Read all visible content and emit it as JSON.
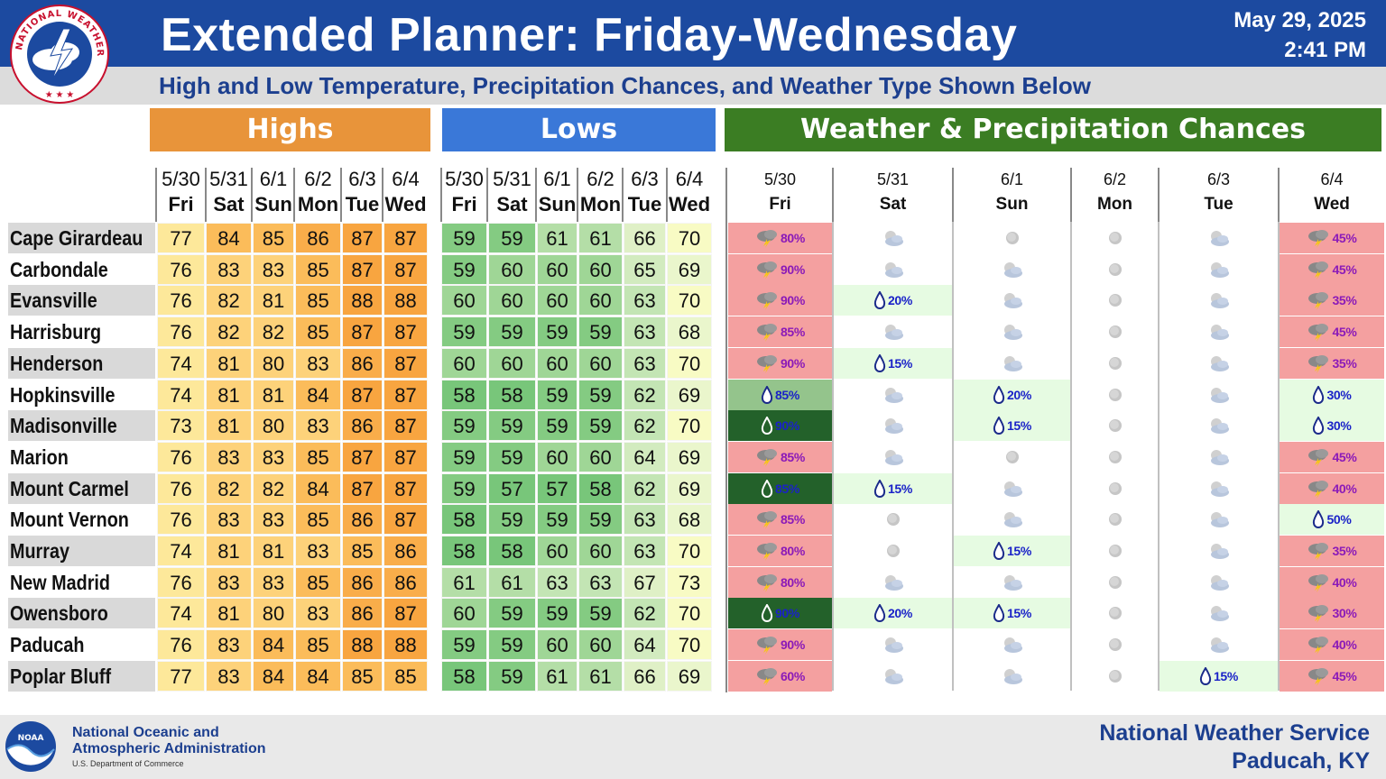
{
  "header": {
    "title": "Extended Planner: Friday-Wednesday",
    "date": "May 29, 2025",
    "time": "2:41 PM",
    "subtitle": "High and Low Temperature, Precipitation Chances, and Weather Type Shown Below",
    "logo_text": "NATIONAL WEATHER SERVICE"
  },
  "sections": {
    "highs": "Highs",
    "lows": "Lows",
    "weather": "Weather & Precipitation Chances"
  },
  "dates": [
    "5/30",
    "5/31",
    "6/1",
    "6/2",
    "6/3",
    "6/4"
  ],
  "days": [
    "Fri",
    "Sat",
    "Sun",
    "Mon",
    "Tue",
    "Wed"
  ],
  "colors": {
    "header_blue": "#1c4aa0",
    "highs_orange": "#e8943a",
    "lows_blue": "#3a78d8",
    "weather_green": "#3b7d23",
    "storm_pink": "#f4a0a0",
    "rain_lightgreen": "#e6fbe2",
    "rain_medgreen": "#94c48c",
    "rain_darkgreen": "#23612a"
  },
  "cities": [
    {
      "name": "Cape Girardeau",
      "highs": [
        77,
        84,
        85,
        86,
        87,
        87
      ],
      "lows": [
        59,
        59,
        61,
        61,
        66,
        70
      ],
      "wx": [
        {
          "icon": "storm-icon",
          "pct": "80%",
          "bg": "pink"
        },
        {
          "icon": "partly-cloudy-icon",
          "pct": "",
          "bg": "white"
        },
        {
          "icon": "sunny-icon",
          "pct": "",
          "bg": "white"
        },
        {
          "icon": "sunny-icon",
          "pct": "",
          "bg": "white"
        },
        {
          "icon": "partly-cloudy-icon",
          "pct": "",
          "bg": "white"
        },
        {
          "icon": "storm-icon",
          "pct": "45%",
          "bg": "pink"
        }
      ]
    },
    {
      "name": "Carbondale",
      "highs": [
        76,
        83,
        83,
        85,
        87,
        87
      ],
      "lows": [
        59,
        60,
        60,
        60,
        65,
        69
      ],
      "wx": [
        {
          "icon": "storm-icon",
          "pct": "90%",
          "bg": "pink"
        },
        {
          "icon": "partly-cloudy-icon",
          "pct": "",
          "bg": "white"
        },
        {
          "icon": "partly-cloudy-icon",
          "pct": "",
          "bg": "white"
        },
        {
          "icon": "sunny-icon",
          "pct": "",
          "bg": "white"
        },
        {
          "icon": "partly-cloudy-icon",
          "pct": "",
          "bg": "white"
        },
        {
          "icon": "storm-icon",
          "pct": "45%",
          "bg": "pink"
        }
      ]
    },
    {
      "name": "Evansville",
      "highs": [
        76,
        82,
        81,
        85,
        88,
        88
      ],
      "lows": [
        60,
        60,
        60,
        60,
        63,
        70
      ],
      "wx": [
        {
          "icon": "storm-icon",
          "pct": "90%",
          "bg": "pink"
        },
        {
          "icon": "rain-drop-icon",
          "pct": "20%",
          "bg": "lightgreen"
        },
        {
          "icon": "partly-cloudy-icon",
          "pct": "",
          "bg": "white"
        },
        {
          "icon": "sunny-icon",
          "pct": "",
          "bg": "white"
        },
        {
          "icon": "partly-cloudy-icon",
          "pct": "",
          "bg": "white"
        },
        {
          "icon": "storm-icon",
          "pct": "35%",
          "bg": "pink"
        }
      ]
    },
    {
      "name": "Harrisburg",
      "highs": [
        76,
        82,
        82,
        85,
        87,
        87
      ],
      "lows": [
        59,
        59,
        59,
        59,
        63,
        68
      ],
      "wx": [
        {
          "icon": "storm-icon",
          "pct": "85%",
          "bg": "pink"
        },
        {
          "icon": "partly-cloudy-icon",
          "pct": "",
          "bg": "white"
        },
        {
          "icon": "partly-cloudy-icon",
          "pct": "",
          "bg": "white"
        },
        {
          "icon": "sunny-icon",
          "pct": "",
          "bg": "white"
        },
        {
          "icon": "partly-cloudy-icon",
          "pct": "",
          "bg": "white"
        },
        {
          "icon": "storm-icon",
          "pct": "45%",
          "bg": "pink"
        }
      ]
    },
    {
      "name": "Henderson",
      "highs": [
        74,
        81,
        80,
        83,
        86,
        87
      ],
      "lows": [
        60,
        60,
        60,
        60,
        63,
        70
      ],
      "wx": [
        {
          "icon": "storm-icon",
          "pct": "90%",
          "bg": "pink"
        },
        {
          "icon": "rain-drop-icon",
          "pct": "15%",
          "bg": "lightgreen"
        },
        {
          "icon": "partly-cloudy-icon",
          "pct": "",
          "bg": "white"
        },
        {
          "icon": "sunny-icon",
          "pct": "",
          "bg": "white"
        },
        {
          "icon": "partly-cloudy-icon",
          "pct": "",
          "bg": "white"
        },
        {
          "icon": "storm-icon",
          "pct": "35%",
          "bg": "pink"
        }
      ]
    },
    {
      "name": "Hopkinsville",
      "highs": [
        74,
        81,
        81,
        84,
        87,
        87
      ],
      "lows": [
        58,
        58,
        59,
        59,
        62,
        69
      ],
      "wx": [
        {
          "icon": "rain-drop-icon",
          "pct": "85%",
          "bg": "medgreen"
        },
        {
          "icon": "partly-cloudy-icon",
          "pct": "",
          "bg": "white"
        },
        {
          "icon": "rain-drop-icon",
          "pct": "20%",
          "bg": "lightgreen"
        },
        {
          "icon": "sunny-icon",
          "pct": "",
          "bg": "white"
        },
        {
          "icon": "partly-cloudy-icon",
          "pct": "",
          "bg": "white"
        },
        {
          "icon": "rain-drop-icon",
          "pct": "30%",
          "bg": "lightgreen"
        }
      ]
    },
    {
      "name": "Madisonville",
      "highs": [
        73,
        81,
        80,
        83,
        86,
        87
      ],
      "lows": [
        59,
        59,
        59,
        59,
        62,
        70
      ],
      "wx": [
        {
          "icon": "rain-drop-icon",
          "pct": "90%",
          "bg": "darkgreen"
        },
        {
          "icon": "partly-cloudy-icon",
          "pct": "",
          "bg": "white"
        },
        {
          "icon": "rain-drop-icon",
          "pct": "15%",
          "bg": "lightgreen"
        },
        {
          "icon": "sunny-icon",
          "pct": "",
          "bg": "white"
        },
        {
          "icon": "partly-cloudy-icon",
          "pct": "",
          "bg": "white"
        },
        {
          "icon": "rain-drop-icon",
          "pct": "30%",
          "bg": "lightgreen"
        }
      ]
    },
    {
      "name": "Marion",
      "highs": [
        76,
        83,
        83,
        85,
        87,
        87
      ],
      "lows": [
        59,
        59,
        60,
        60,
        64,
        69
      ],
      "wx": [
        {
          "icon": "storm-icon",
          "pct": "85%",
          "bg": "pink"
        },
        {
          "icon": "partly-cloudy-icon",
          "pct": "",
          "bg": "white"
        },
        {
          "icon": "sunny-icon",
          "pct": "",
          "bg": "white"
        },
        {
          "icon": "sunny-icon",
          "pct": "",
          "bg": "white"
        },
        {
          "icon": "partly-cloudy-icon",
          "pct": "",
          "bg": "white"
        },
        {
          "icon": "storm-icon",
          "pct": "45%",
          "bg": "pink"
        }
      ]
    },
    {
      "name": "Mount Carmel",
      "highs": [
        76,
        82,
        82,
        84,
        87,
        87
      ],
      "lows": [
        59,
        57,
        57,
        58,
        62,
        69
      ],
      "wx": [
        {
          "icon": "rain-drop-icon",
          "pct": "85%",
          "bg": "darkgreen"
        },
        {
          "icon": "rain-drop-icon",
          "pct": "15%",
          "bg": "lightgreen"
        },
        {
          "icon": "partly-cloudy-icon",
          "pct": "",
          "bg": "white"
        },
        {
          "icon": "sunny-icon",
          "pct": "",
          "bg": "white"
        },
        {
          "icon": "partly-cloudy-icon",
          "pct": "",
          "bg": "white"
        },
        {
          "icon": "storm-icon",
          "pct": "40%",
          "bg": "pink"
        }
      ]
    },
    {
      "name": "Mount Vernon",
      "highs": [
        76,
        83,
        83,
        85,
        86,
        87
      ],
      "lows": [
        58,
        59,
        59,
        59,
        63,
        68
      ],
      "wx": [
        {
          "icon": "storm-icon",
          "pct": "85%",
          "bg": "pink"
        },
        {
          "icon": "sunny-icon",
          "pct": "",
          "bg": "white"
        },
        {
          "icon": "partly-cloudy-icon",
          "pct": "",
          "bg": "white"
        },
        {
          "icon": "sunny-icon",
          "pct": "",
          "bg": "white"
        },
        {
          "icon": "partly-cloudy-icon",
          "pct": "",
          "bg": "white"
        },
        {
          "icon": "rain-drop-icon",
          "pct": "50%",
          "bg": "lightgreen"
        }
      ]
    },
    {
      "name": "Murray",
      "highs": [
        74,
        81,
        81,
        83,
        85,
        86
      ],
      "lows": [
        58,
        58,
        60,
        60,
        63,
        70
      ],
      "wx": [
        {
          "icon": "storm-icon",
          "pct": "80%",
          "bg": "pink"
        },
        {
          "icon": "sunny-icon",
          "pct": "",
          "bg": "white"
        },
        {
          "icon": "rain-drop-icon",
          "pct": "15%",
          "bg": "lightgreen"
        },
        {
          "icon": "sunny-icon",
          "pct": "",
          "bg": "white"
        },
        {
          "icon": "partly-cloudy-icon",
          "pct": "",
          "bg": "white"
        },
        {
          "icon": "storm-icon",
          "pct": "35%",
          "bg": "pink"
        }
      ]
    },
    {
      "name": "New Madrid",
      "highs": [
        76,
        83,
        83,
        85,
        86,
        86
      ],
      "lows": [
        61,
        61,
        63,
        63,
        67,
        73
      ],
      "wx": [
        {
          "icon": "storm-icon",
          "pct": "80%",
          "bg": "pink"
        },
        {
          "icon": "partly-cloudy-icon",
          "pct": "",
          "bg": "white"
        },
        {
          "icon": "partly-cloudy-icon",
          "pct": "",
          "bg": "white"
        },
        {
          "icon": "sunny-icon",
          "pct": "",
          "bg": "white"
        },
        {
          "icon": "partly-cloudy-icon",
          "pct": "",
          "bg": "white"
        },
        {
          "icon": "storm-icon",
          "pct": "40%",
          "bg": "pink"
        }
      ]
    },
    {
      "name": "Owensboro",
      "highs": [
        74,
        81,
        80,
        83,
        86,
        87
      ],
      "lows": [
        60,
        59,
        59,
        59,
        62,
        70
      ],
      "wx": [
        {
          "icon": "rain-drop-icon",
          "pct": "90%",
          "bg": "darkgreen"
        },
        {
          "icon": "rain-drop-icon",
          "pct": "20%",
          "bg": "lightgreen"
        },
        {
          "icon": "rain-drop-icon",
          "pct": "15%",
          "bg": "lightgreen"
        },
        {
          "icon": "sunny-icon",
          "pct": "",
          "bg": "white"
        },
        {
          "icon": "partly-cloudy-icon",
          "pct": "",
          "bg": "white"
        },
        {
          "icon": "storm-icon",
          "pct": "30%",
          "bg": "pink"
        }
      ]
    },
    {
      "name": "Paducah",
      "highs": [
        76,
        83,
        84,
        85,
        88,
        88
      ],
      "lows": [
        59,
        59,
        60,
        60,
        64,
        70
      ],
      "wx": [
        {
          "icon": "storm-icon",
          "pct": "90%",
          "bg": "pink"
        },
        {
          "icon": "partly-cloudy-icon",
          "pct": "",
          "bg": "white"
        },
        {
          "icon": "partly-cloudy-icon",
          "pct": "",
          "bg": "white"
        },
        {
          "icon": "sunny-icon",
          "pct": "",
          "bg": "white"
        },
        {
          "icon": "partly-cloudy-icon",
          "pct": "",
          "bg": "white"
        },
        {
          "icon": "storm-icon",
          "pct": "40%",
          "bg": "pink"
        }
      ]
    },
    {
      "name": "Poplar Bluff",
      "highs": [
        77,
        83,
        84,
        84,
        85,
        85
      ],
      "lows": [
        58,
        59,
        61,
        61,
        66,
        69
      ],
      "wx": [
        {
          "icon": "storm-icon",
          "pct": "60%",
          "bg": "pink"
        },
        {
          "icon": "partly-cloudy-icon",
          "pct": "",
          "bg": "white"
        },
        {
          "icon": "partly-cloudy-icon",
          "pct": "",
          "bg": "white"
        },
        {
          "icon": "sunny-icon",
          "pct": "",
          "bg": "white"
        },
        {
          "icon": "rain-drop-icon",
          "pct": "15%",
          "bg": "lightgreen"
        },
        {
          "icon": "storm-icon",
          "pct": "45%",
          "bg": "pink"
        }
      ]
    }
  ],
  "footer": {
    "noaa_line1": "National Oceanic and",
    "noaa_line2": "Atmospheric Administration",
    "noaa_dept": "U.S. Department of Commerce",
    "noaa_logo_text": "NOAA",
    "office_line1": "National Weather Service",
    "office_line2": "Paducah, KY"
  }
}
